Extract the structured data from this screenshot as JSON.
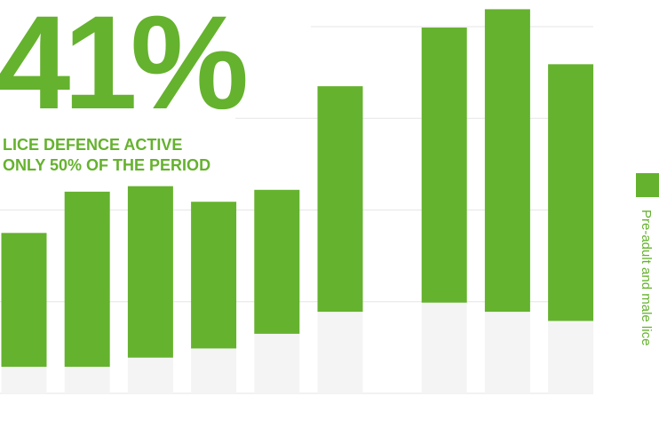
{
  "chart_data": {
    "type": "stacked-bar",
    "title": "41%",
    "subtitle": [
      "LICE DEFENCE ACTIVE",
      "ONLY 50% OF THE PERIOD"
    ],
    "categories": [
      null,
      null,
      null,
      null,
      null,
      null,
      null,
      null,
      null
    ],
    "series": [
      {
        "color": "#f4f4f4",
        "values": [
          0.29,
          0.29,
          0.39,
          0.49,
          0.65,
          0.89,
          0.99,
          0.89,
          0.79
        ]
      },
      {
        "name": "Pre-adult and male lice",
        "color": "#65b22e",
        "values": [
          1.46,
          1.91,
          1.87,
          1.6,
          1.57,
          2.46,
          3.0,
          3.3,
          2.8
        ]
      }
    ],
    "ylim": [
      0,
      4.2
    ],
    "yticks": [
      0,
      1,
      2,
      3,
      4
    ],
    "grid": true,
    "legend": "right"
  }
}
